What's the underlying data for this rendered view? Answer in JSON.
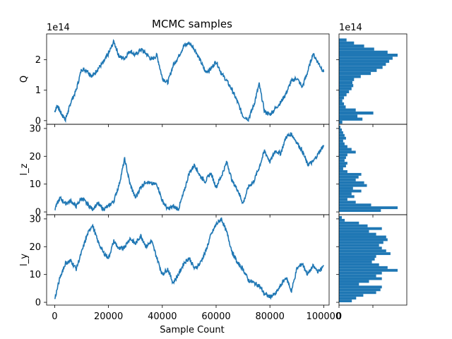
{
  "chart_data": {
    "type": "line",
    "title": "MCMC samples",
    "xlabel": "Sample Count",
    "xlim": [
      -3000,
      102000
    ],
    "xticks": [
      0,
      20000,
      40000,
      60000,
      80000,
      100000
    ],
    "xtick_labels": [
      "0",
      "20000",
      "40000",
      "60000",
      "80000",
      "100000"
    ],
    "color": "#1f77b4",
    "panels": [
      {
        "name": "Q",
        "ylabel": "Q",
        "offset_text": "1e14",
        "ylim": [
          -0.12,
          2.85
        ],
        "yticks": [
          0,
          1,
          2
        ],
        "ytick_labels": [
          "0",
          "1",
          "2"
        ],
        "x": [
          0,
          1000,
          2000,
          3000,
          4000,
          5000,
          6000,
          8000,
          10000,
          12000,
          14000,
          16000,
          18000,
          20000,
          22000,
          24000,
          26000,
          28000,
          30000,
          32000,
          34000,
          36000,
          38000,
          40000,
          42000,
          44000,
          46000,
          48000,
          50000,
          52000,
          54000,
          56000,
          58000,
          60000,
          62000,
          64000,
          66000,
          68000,
          70000,
          72000,
          74000,
          76000,
          78000,
          80000,
          82000,
          84000,
          86000,
          88000,
          90000,
          92000,
          94000,
          96000,
          98000,
          100000
        ],
        "values": [
          0.3,
          0.5,
          0.3,
          0.15,
          0.05,
          0.3,
          0.6,
          1.0,
          1.7,
          1.65,
          1.45,
          1.7,
          1.9,
          2.2,
          2.6,
          2.1,
          2.05,
          2.3,
          2.15,
          2.35,
          2.2,
          2.0,
          2.15,
          1.4,
          1.25,
          1.8,
          2.1,
          2.45,
          2.55,
          2.35,
          2.0,
          1.6,
          1.7,
          1.95,
          1.55,
          1.3,
          1.0,
          0.6,
          0.15,
          0.05,
          0.5,
          1.2,
          0.3,
          0.2,
          0.4,
          0.6,
          0.9,
          1.3,
          1.4,
          1.1,
          1.6,
          2.2,
          1.9,
          1.6
        ],
        "hist_bins": [
          -0.1,
          0.0,
          0.1,
          0.2,
          0.3,
          0.4,
          0.5,
          0.6,
          0.7,
          0.8,
          0.9,
          1.0,
          1.1,
          1.2,
          1.3,
          1.4,
          1.5,
          1.6,
          1.7,
          1.8,
          1.9,
          2.0,
          2.1,
          2.2,
          2.3,
          2.4,
          2.5,
          2.6,
          2.7
        ],
        "hist_counts": [
          40,
          280,
          220,
          410,
          200,
          80,
          60,
          40,
          60,
          90,
          120,
          150,
          170,
          160,
          180,
          260,
          380,
          450,
          520,
          560,
          600,
          640,
          700,
          580,
          420,
          300,
          180,
          90
        ]
      },
      {
        "name": "l_z",
        "ylabel": "l_z",
        "offset_text": "",
        "ylim": [
          -1,
          31.5
        ],
        "yticks": [
          0,
          10,
          20,
          30
        ],
        "ytick_labels": [
          "0",
          "10",
          "20",
          "30"
        ],
        "x": [
          0,
          2000,
          4000,
          6000,
          8000,
          10000,
          12000,
          14000,
          16000,
          18000,
          20000,
          22000,
          24000,
          26000,
          28000,
          30000,
          32000,
          34000,
          36000,
          38000,
          40000,
          42000,
          44000,
          46000,
          48000,
          50000,
          52000,
          54000,
          56000,
          58000,
          60000,
          62000,
          64000,
          66000,
          68000,
          70000,
          72000,
          74000,
          76000,
          78000,
          80000,
          82000,
          84000,
          86000,
          88000,
          90000,
          92000,
          94000,
          96000,
          98000,
          100000
        ],
        "values": [
          1,
          5,
          3,
          4,
          2,
          5,
          3,
          1,
          3,
          1,
          2,
          4,
          10,
          19,
          10,
          5,
          9,
          11,
          10,
          10,
          4,
          1,
          2,
          1,
          7,
          14,
          17,
          13,
          11,
          14,
          9,
          13,
          18,
          11,
          8,
          3,
          9,
          11,
          16,
          22,
          18,
          22,
          21,
          27,
          28,
          25,
          22,
          17,
          18,
          21,
          24
        ],
        "hist_bins": [
          0,
          1,
          2,
          3,
          4,
          5,
          6,
          7,
          8,
          9,
          10,
          11,
          12,
          13,
          14,
          15,
          16,
          17,
          18,
          19,
          20,
          21,
          22,
          23,
          24,
          25,
          26,
          27,
          28,
          29,
          30,
          31
        ],
        "hist_counts": [
          300,
          420,
          230,
          120,
          60,
          110,
          90,
          160,
          100,
          200,
          180,
          120,
          140,
          160,
          60,
          30,
          50,
          60,
          40,
          50,
          60,
          120,
          90,
          60,
          40,
          30,
          50,
          40,
          30,
          20,
          10
        ]
      },
      {
        "name": "l_y",
        "ylabel": "l_y",
        "offset_text": "",
        "ylim": [
          -1,
          31.5
        ],
        "yticks": [
          0,
          10,
          20,
          30
        ],
        "ytick_labels": [
          "0",
          "10",
          "20",
          "30"
        ],
        "x": [
          0,
          2000,
          4000,
          6000,
          8000,
          10000,
          12000,
          14000,
          16000,
          18000,
          20000,
          22000,
          24000,
          26000,
          28000,
          30000,
          32000,
          34000,
          36000,
          38000,
          40000,
          42000,
          44000,
          46000,
          48000,
          50000,
          52000,
          54000,
          56000,
          58000,
          60000,
          62000,
          64000,
          66000,
          68000,
          70000,
          72000,
          74000,
          76000,
          78000,
          80000,
          82000,
          84000,
          86000,
          88000,
          90000,
          92000,
          94000,
          96000,
          98000,
          100000
        ],
        "values": [
          1,
          9,
          14,
          15,
          12,
          18,
          24,
          28,
          22,
          18,
          16,
          22,
          19,
          20,
          23,
          21,
          24,
          20,
          22,
          16,
          10,
          12,
          7,
          10,
          14,
          16,
          12,
          14,
          18,
          24,
          28,
          30,
          25,
          18,
          14,
          12,
          8,
          7,
          6,
          3,
          2,
          3,
          6,
          9,
          4,
          12,
          14,
          10,
          13,
          11,
          13
        ],
        "hist_bins": [
          0,
          1,
          2,
          3,
          4,
          5,
          6,
          7,
          8,
          9,
          10,
          11,
          12,
          13,
          14,
          15,
          16,
          17,
          18,
          19,
          20,
          21,
          22,
          23,
          24,
          25,
          26,
          27,
          28,
          29,
          30,
          31
        ],
        "hist_counts": [
          90,
          120,
          170,
          260,
          290,
          300,
          140,
          210,
          300,
          260,
          300,
          410,
          340,
          280,
          230,
          250,
          260,
          360,
          330,
          300,
          280,
          310,
          340,
          330,
          260,
          210,
          300,
          200,
          140,
          40,
          20
        ]
      }
    ]
  }
}
